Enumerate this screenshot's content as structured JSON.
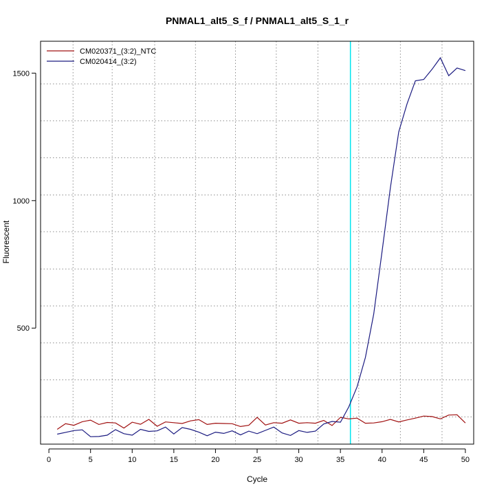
{
  "chart_data": {
    "type": "line",
    "title": "PNMAL1_alt5_S_f / PNMAL1_alt5_S_1_r",
    "xlabel": "Cycle",
    "ylabel": "Fluorescent",
    "xlim": [
      -1,
      51
    ],
    "ylim": [
      45,
      1625
    ],
    "x_ticks": [
      0,
      5,
      10,
      15,
      20,
      25,
      30,
      35,
      40,
      45,
      50
    ],
    "y_ticks": [
      500,
      1000,
      1500
    ],
    "x_grid": [
      2.9,
      7.6,
      12.7,
      17.6,
      22.4,
      27.3,
      32.3,
      37.2,
      42.2,
      47.2
    ],
    "y_grid": [
      152,
      297,
      442,
      587,
      732,
      878,
      1022,
      1168,
      1313,
      1458
    ],
    "threshold_x": 36.2,
    "legend_position": "top-left",
    "colors": {
      "threshold": "#00e5ee",
      "grid": "#8c8c8c"
    },
    "x": [
      1,
      2,
      3,
      4,
      5,
      6,
      7,
      8,
      9,
      10,
      11,
      12,
      13,
      14,
      15,
      16,
      17,
      18,
      19,
      20,
      21,
      22,
      23,
      24,
      25,
      26,
      27,
      28,
      29,
      30,
      31,
      32,
      33,
      34,
      35,
      36,
      37,
      38,
      39,
      40,
      41,
      42,
      43,
      44,
      45,
      46,
      47,
      48,
      49,
      50
    ],
    "series": [
      {
        "name": "CM020371_(3:2)_NTC",
        "color": "#a01010",
        "values": [
          103,
          125,
          119,
          133,
          139,
          122,
          130,
          128,
          108,
          131,
          123,
          142,
          115,
          132,
          129,
          126,
          136,
          141,
          122,
          127,
          126,
          125,
          114,
          119,
          150,
          120,
          129,
          127,
          140,
          127,
          129,
          127,
          138,
          118,
          150,
          144,
          147,
          127,
          128,
          133,
          142,
          132,
          140,
          147,
          155,
          153,
          144,
          159,
          160,
          128
        ]
      },
      {
        "name": "CM020414_(3:2)",
        "color": "#1a1a80",
        "values": [
          84,
          91,
          98,
          101,
          74,
          75,
          80,
          102,
          86,
          80,
          103,
          95,
          97,
          112,
          85,
          110,
          103,
          92,
          78,
          92,
          87,
          97,
          81,
          96,
          86,
          99,
          112,
          89,
          79,
          98,
          91,
          96,
          124,
          134,
          131,
          191,
          270,
          385,
          555,
          800,
          1050,
          1270,
          1380,
          1470,
          1475,
          1515,
          1560,
          1490,
          1520,
          1510
        ]
      }
    ]
  }
}
